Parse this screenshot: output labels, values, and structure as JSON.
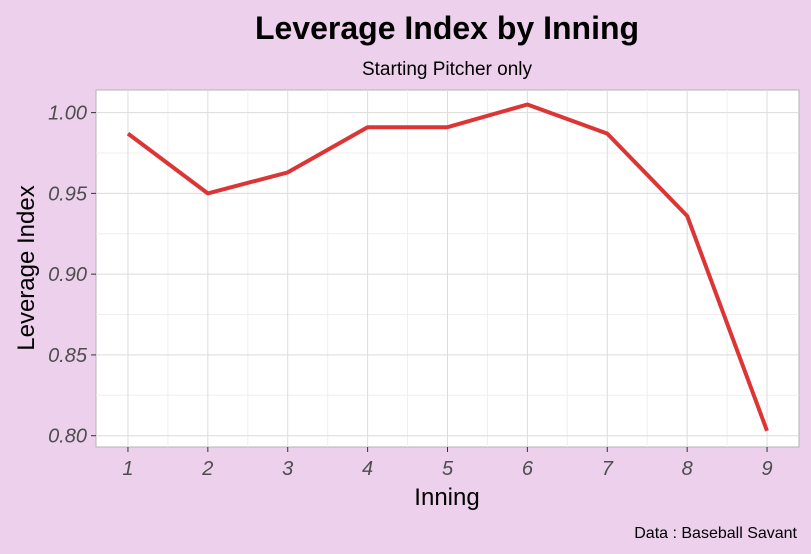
{
  "chart_data": {
    "type": "line",
    "title": "Leverage Index by Inning",
    "subtitle": "Starting Pitcher only",
    "xlabel": "Inning",
    "ylabel": "Leverage Index",
    "caption": "Data : Baseball Savant",
    "x": [
      1,
      2,
      3,
      4,
      5,
      6,
      7,
      8,
      9
    ],
    "x_tick_labels": [
      "1",
      "2",
      "3",
      "4",
      "5",
      "6",
      "7",
      "8",
      "9"
    ],
    "series": [
      {
        "name": "",
        "values": [
          0.987,
          0.95,
          0.963,
          0.991,
          0.991,
          1.005,
          0.987,
          0.936,
          0.803
        ],
        "color": "#dc3535"
      }
    ],
    "xlim": [
      0.6,
      9.4
    ],
    "ylim": [
      0.793,
      1.014
    ],
    "y_ticks": [
      0.8,
      0.85,
      0.9,
      0.95,
      1.0
    ],
    "y_tick_labels": [
      "0.80",
      "0.85",
      "0.90",
      "0.95",
      "1.00"
    ],
    "grid": true,
    "colors": {
      "background": "#ecd0ec",
      "panel": "#ffffff",
      "grid_major": "#dcdcdc",
      "grid_minor": "#efefef",
      "line": "#dc3535"
    }
  }
}
